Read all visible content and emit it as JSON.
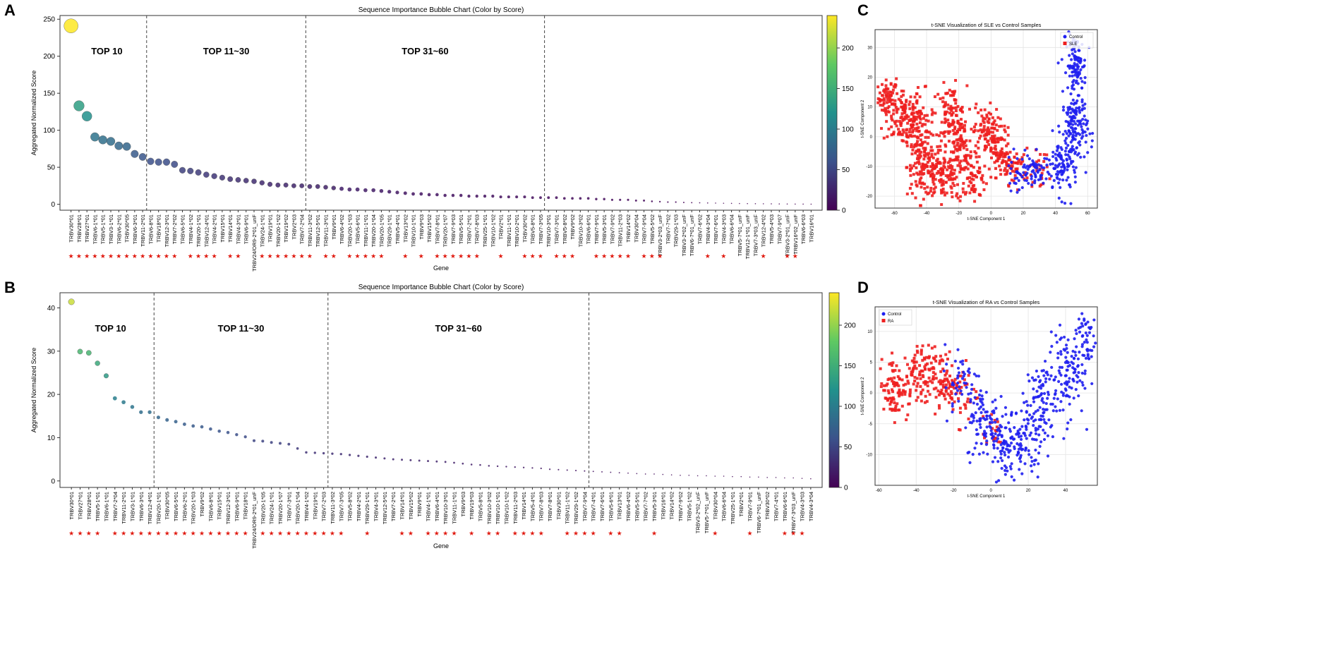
{
  "colors": {
    "panel_frame": "#333333",
    "viridis": [
      "#440154",
      "#3b528b",
      "#21918c",
      "#5ec962",
      "#fde725"
    ],
    "star": "#e0190f",
    "control": "#1f1ff0",
    "case": "#ee1f1f",
    "grid": "#e4e4e4"
  },
  "chart_data": [
    {
      "id": "A",
      "type": "scatter",
      "panel_label": "A",
      "title": "Sequence Importance Bubble Chart (Color by Score)",
      "xlabel": "Gene",
      "ylabel": "Aggregated Normalized Score",
      "yticks": [
        0,
        50,
        100,
        150,
        200,
        250
      ],
      "ylim": [
        -8,
        255
      ],
      "color_scale": [
        0,
        240
      ],
      "colorbar_ticks": [
        0,
        50,
        100,
        150,
        200
      ],
      "groups": [
        {
          "label": "TOP 10",
          "after": 9.5
        },
        {
          "label": "TOP 11~30",
          "after": 29.5
        },
        {
          "label": "TOP 31~60",
          "after": 59.5
        }
      ],
      "genes": [
        "TRBV30*01",
        "TRBV28*01",
        "TRBV27*01",
        "TRBV6-1*01",
        "TRBV5-1*01",
        "TRBV3-1*01",
        "TRBV6-2*01",
        "TRBV30*05",
        "TRBV6-3*01",
        "TRBV11-2*01",
        "TRBV6-8*01",
        "TRBV18*01",
        "TRBV12-3*01",
        "TRBV7-2*02",
        "TRBV6-5*01",
        "TRBV4-1*02",
        "TRBV20-1*01",
        "TRBV12-4*01",
        "TRBV4-2*01",
        "TRBV15*01",
        "TRBV14*01",
        "TRBV4-3*01",
        "TRBV6-9*01",
        "TRBV24/OR9-2*01_unF",
        "TRBV24-1*01",
        "TRBV19*01",
        "TRBV20-1*02",
        "TRBV19*02",
        "TRBV2*03",
        "TRBV7-2*04",
        "TRBV11-3*02",
        "TRBV12-5*01",
        "TRBV11-3*01",
        "TRBV9*01",
        "TRBV6-4*02",
        "TRBV20-1*03",
        "TRBV5-6*01",
        "TRBV11-1*01",
        "TRBV20-1*04",
        "TRBV20-1*05",
        "TRBV29-1*01",
        "TRBV5-4*01",
        "TRBV13*02",
        "TRBV10-1*01",
        "TRBV9*03",
        "TRBV15*02",
        "TRBV7-8*01",
        "TRBV20-1*07",
        "TRBV7-9*03",
        "TRBV5-5*01",
        "TRBV7-2*01",
        "TRBV7-8*03",
        "TRBV25-1*01",
        "TRBV10-1*02",
        "TRBV2*01",
        "TRBV11-1*01",
        "TRBV10-2*01",
        "TRBV30*02",
        "TRBV5-8*01",
        "TRBV7-3*05",
        "TRBV10-3*01",
        "TRBV7-3*01",
        "TRBV5-8*02",
        "TRBV9*02",
        "TRBV10-3*02",
        "TRBV6-6*01",
        "TRBV7-9*01",
        "TRBV5-3*01",
        "TRBV7-9*02",
        "TRBV11-2*03",
        "TRBV14*02",
        "TRBV30*04",
        "TRBV7-9*04",
        "TRBV5-5*02",
        "TRBV3-2*03_unF",
        "TRBV7-7*02",
        "TRBV29-1*03",
        "TRBV3-2*02_unF",
        "TRBV6-7*01_unF",
        "TRBV7-6*02",
        "TRBV4-3*04",
        "TRBV7-6*01",
        "TRBV4-3*03",
        "TRBV6-6*04",
        "TRBV5-7*01_unF",
        "TRBV12-1*01_unF",
        "TRBV7-3*03_unF",
        "TRBV12-4*02",
        "TRBV5-4*03",
        "TRBV7-9*07",
        "TRBV3-2*01_unF",
        "TRBV16*02_unF",
        "TRBV6-6*03",
        "TRBV16*01"
      ],
      "values": [
        241,
        133,
        119,
        91,
        87,
        85,
        79,
        78,
        68,
        64,
        58,
        57,
        57,
        54,
        46,
        45,
        43,
        40,
        38,
        36,
        34,
        33,
        32,
        31,
        29,
        27,
        26,
        26,
        25,
        25,
        24,
        24,
        23,
        22,
        21,
        20,
        20,
        19,
        19,
        18,
        17,
        16,
        15,
        14,
        14,
        13,
        13,
        12,
        12,
        12,
        11,
        11,
        11,
        11,
        10,
        10,
        10,
        10,
        9,
        9,
        9,
        9,
        8,
        8,
        8,
        8,
        7,
        7,
        6,
        6,
        6,
        5,
        5,
        4,
        3.5,
        3,
        3,
        2.5,
        2.2,
        2,
        1.8,
        1.6,
        1.4,
        1.2,
        1,
        0.9,
        0.8,
        0.7,
        0.6,
        0.5,
        0.4,
        0.3,
        0.25,
        0.2
      ],
      "stars": [
        1,
        1,
        1,
        1,
        1,
        1,
        1,
        1,
        1,
        1,
        1,
        1,
        1,
        1,
        0,
        1,
        1,
        1,
        1,
        0,
        1,
        1,
        0,
        0,
        1,
        1,
        1,
        1,
        1,
        1,
        1,
        0,
        1,
        1,
        0,
        1,
        1,
        1,
        1,
        1,
        0,
        0,
        1,
        0,
        1,
        0,
        1,
        1,
        1,
        1,
        1,
        1,
        0,
        0,
        1,
        0,
        0,
        1,
        1,
        1,
        0,
        1,
        1,
        1,
        0,
        0,
        1,
        1,
        1,
        1,
        1,
        0,
        1,
        1,
        1,
        0,
        0,
        0,
        0,
        0,
        1,
        0,
        1,
        0,
        0,
        0,
        0,
        1,
        0,
        0,
        1,
        1,
        0,
        0
      ]
    },
    {
      "id": "B",
      "type": "scatter",
      "panel_label": "B",
      "title": "Sequence Importance Bubble Chart (Color by Score)",
      "xlabel": "Gene",
      "ylabel": "Aggregated Normalized Score",
      "yticks": [
        0,
        10,
        20,
        30,
        40
      ],
      "ylim": [
        -1.5,
        43.5
      ],
      "color_scale": [
        0,
        45
      ],
      "colorbar_ticks": [
        0,
        50,
        100,
        150,
        200
      ],
      "colorbar_range": [
        0,
        240
      ],
      "groups": [
        {
          "label": "TOP 10",
          "after": 9.5
        },
        {
          "label": "TOP 11~30",
          "after": 29.5
        },
        {
          "label": "TOP 31~60",
          "after": 59.5
        }
      ],
      "genes": [
        "TRBV30*01",
        "TRBV27*01",
        "TRBV28*01",
        "TRBV5-1*01",
        "TRBV6-1*01",
        "TRBV7-2*04",
        "TRBV11-2*01",
        "TRBV3-1*01",
        "TRBV6-3*01",
        "TRBV12-4*01",
        "TRBV20-1*01",
        "TRBV30*05",
        "TRBV6-5*01",
        "TRBV6-2*01",
        "TRBV20-1*03",
        "TRBV9*02",
        "TRBV6-8*01",
        "TRBV15*01",
        "TRBV12-3*01",
        "TRBV6-9*01",
        "TRBV18*01",
        "TRBV24/OR9-2*01_unF",
        "TRBV20-1*05",
        "TRBV24-1*01",
        "TRBV20-1*07",
        "TRBV7-3*01",
        "TRBV20-1*04",
        "TRBV4-1*02",
        "TRBV19*01",
        "TRBV7-2*03",
        "TRBV11-3*02",
        "TRBV7-3*05",
        "TRBV5-8*02",
        "TRBV4-2*01",
        "TRBV29-1*01",
        "TRBV4-3*01",
        "TRBV12-5*01",
        "TRBV7-2*01",
        "TRBV14*01",
        "TRBV15*02",
        "TRBV9*01",
        "TRBV4-1*01",
        "TRBV6-4*01",
        "TRBV10-3*01",
        "TRBV11-1*01",
        "TRBV9*03",
        "TRBV19*03",
        "TRBV5-8*01",
        "TRBV10-3*02",
        "TRBV10-1*01",
        "TRBV10-1*02",
        "TRBV11-2*03",
        "TRBV14*01",
        "TRBV5-4*01",
        "TRBV7-8*03",
        "TRBV7-8*01",
        "TRBV30*01",
        "TRBV11-1*02",
        "TRBV29-1*02",
        "TRBV7-9*04",
        "TRBV7-4*01",
        "TRBV7-6*01",
        "TRBV5-6*01",
        "TRBV13*01",
        "TRBV6-4*02",
        "TRBV5-5*01",
        "TRBV7-7*02",
        "TRBV5-3*01",
        "TRBV16*01",
        "TRBV14*02",
        "TRBV7-9*02",
        "TRBV5-1*02",
        "TRBV3-2*02_unF",
        "TRBV5-7*01_unF",
        "TRBV30*04",
        "TRBV6-6*04",
        "TRBV25-1*01",
        "TRBV2*01",
        "TRBV7-9*01",
        "TRBV6-7*01_unF",
        "TRBV30*02",
        "TRBV7-4*01",
        "TRBV6-6*01",
        "TRBV7-3*03_unF",
        "TRBV4-3*03",
        "TRBV4-3*04"
      ],
      "values": [
        41.4,
        29.9,
        29.6,
        27.2,
        24.3,
        19.1,
        18.2,
        17.1,
        15.9,
        15.9,
        14.7,
        14.1,
        13.7,
        13.1,
        12.7,
        12.5,
        12.0,
        11.5,
        11.2,
        10.7,
        10.2,
        9.3,
        9.2,
        8.9,
        8.7,
        8.5,
        7.5,
        6.6,
        6.5,
        6.4,
        6.3,
        6.2,
        6.0,
        5.8,
        5.6,
        5.4,
        5.2,
        5.0,
        4.9,
        4.8,
        4.7,
        4.6,
        4.5,
        4.4,
        4.2,
        4.0,
        3.8,
        3.7,
        3.5,
        3.4,
        3.3,
        3.2,
        3.1,
        3.0,
        2.9,
        2.7,
        2.6,
        2.5,
        2.4,
        2.3,
        2.2,
        2.1,
        2.0,
        1.9,
        1.8,
        1.7,
        1.6,
        1.6,
        1.5,
        1.4,
        1.3,
        1.3,
        1.2,
        1.2,
        1.1,
        1.1,
        1.0,
        1.0,
        0.9,
        0.9,
        0.8,
        0.8,
        0.7,
        0.7,
        0.6,
        0.5
      ],
      "stars": [
        1,
        1,
        1,
        1,
        0,
        1,
        1,
        1,
        1,
        1,
        1,
        1,
        1,
        1,
        1,
        1,
        1,
        1,
        1,
        1,
        1,
        0,
        1,
        1,
        1,
        1,
        1,
        1,
        1,
        1,
        1,
        1,
        0,
        0,
        1,
        0,
        0,
        0,
        1,
        1,
        0,
        1,
        1,
        1,
        1,
        0,
        1,
        0,
        1,
        1,
        0,
        1,
        1,
        1,
        1,
        0,
        0,
        1,
        1,
        1,
        1,
        0,
        1,
        1,
        0,
        0,
        0,
        1,
        0,
        0,
        0,
        0,
        0,
        0,
        1,
        0,
        0,
        0,
        1,
        0,
        0,
        0,
        1,
        1,
        1,
        0
      ]
    },
    {
      "id": "C",
      "type": "scatter",
      "panel_label": "C",
      "title": "t-SNE Visualization of SLE vs Control Samples",
      "xlabel": "t-SNE Component 1",
      "ylabel": "t-SNE Component 2",
      "xlim": [
        -72,
        66
      ],
      "ylim": [
        -24,
        36
      ],
      "xticks": [
        -60,
        -40,
        -20,
        0,
        20,
        40,
        60
      ],
      "yticks": [
        -20,
        -10,
        0,
        10,
        20,
        30
      ],
      "legend": [
        "Control",
        "SLE"
      ],
      "legend_position": "top-right",
      "grid": true,
      "clusters": [
        {
          "series": "SLE",
          "cx": -64,
          "cy": 13,
          "sx": 3,
          "sy": 3,
          "n": 60
        },
        {
          "series": "SLE",
          "cx": -55,
          "cy": 7,
          "sx": 6,
          "sy": 5,
          "n": 120
        },
        {
          "series": "SLE",
          "cx": -45,
          "cy": 3,
          "sx": 5,
          "sy": 6,
          "n": 100
        },
        {
          "series": "SLE",
          "cx": -42,
          "cy": -10,
          "sx": 5,
          "sy": 5,
          "n": 100
        },
        {
          "series": "SLE",
          "cx": -30,
          "cy": -13,
          "sx": 6,
          "sy": 4,
          "n": 110
        },
        {
          "series": "SLE",
          "cx": -25,
          "cy": 7,
          "sx": 5,
          "sy": 5,
          "n": 100
        },
        {
          "series": "SLE",
          "cx": -18,
          "cy": -3,
          "sx": 5,
          "sy": 6,
          "n": 80
        },
        {
          "series": "SLE",
          "cx": -12,
          "cy": -14,
          "sx": 5,
          "sy": 4,
          "n": 70
        },
        {
          "series": "SLE",
          "cx": -3,
          "cy": 2,
          "sx": 4,
          "sy": 4,
          "n": 80
        },
        {
          "series": "SLE",
          "cx": 5,
          "cy": -5,
          "sx": 4,
          "sy": 4,
          "n": 70
        },
        {
          "series": "SLE",
          "cx": 14,
          "cy": -10,
          "sx": 5,
          "sy": 3,
          "n": 60
        },
        {
          "series": "SLE",
          "cx": 30,
          "cy": -11,
          "sx": 3,
          "sy": 3,
          "n": 25
        },
        {
          "series": "Control",
          "cx": 53,
          "cy": 24,
          "sx": 3,
          "sy": 5,
          "n": 110
        },
        {
          "series": "Control",
          "cx": 52,
          "cy": 3,
          "sx": 4,
          "sy": 6,
          "n": 140
        },
        {
          "series": "Control",
          "cx": 44,
          "cy": -10,
          "sx": 5,
          "sy": 5,
          "n": 100
        },
        {
          "series": "Control",
          "cx": 27,
          "cy": -12,
          "sx": 4,
          "sy": 3,
          "n": 50
        },
        {
          "series": "Control",
          "cx": 16,
          "cy": -12,
          "sx": 4,
          "sy": 3,
          "n": 30
        }
      ]
    },
    {
      "id": "D",
      "type": "scatter",
      "panel_label": "D",
      "title": "t-SNE Visualization of RA vs Control Samples",
      "xlabel": "t-SNE Component 1",
      "ylabel": "t-SNE Component 2",
      "xlim": [
        -62,
        57
      ],
      "ylim": [
        -15,
        14
      ],
      "xticks": [
        -60,
        -40,
        -20,
        0,
        20,
        40
      ],
      "yticks": [
        -10,
        -5,
        0,
        5,
        10
      ],
      "legend": [
        "Control",
        "RA"
      ],
      "legend_position": "top-left",
      "grid": true,
      "clusters": [
        {
          "series": "RA",
          "cx": -52,
          "cy": 1,
          "sx": 4,
          "sy": 2.5,
          "n": 80
        },
        {
          "series": "RA",
          "cx": -40,
          "cy": 2.5,
          "sx": 5,
          "sy": 2.5,
          "n": 90
        },
        {
          "series": "RA",
          "cx": -27,
          "cy": 2,
          "sx": 5,
          "sy": 2.5,
          "n": 80
        },
        {
          "series": "RA",
          "cx": -15,
          "cy": 0,
          "sx": 4,
          "sy": 2.5,
          "n": 40
        },
        {
          "series": "RA",
          "cx": 0,
          "cy": -6,
          "sx": 4,
          "sy": 2,
          "n": 20
        },
        {
          "series": "Control",
          "cx": -15,
          "cy": 2,
          "sx": 5,
          "sy": 3,
          "n": 50
        },
        {
          "series": "Control",
          "cx": -3,
          "cy": -5,
          "sx": 5,
          "sy": 3,
          "n": 80
        },
        {
          "series": "Control",
          "cx": 8,
          "cy": -8,
          "sx": 5,
          "sy": 3,
          "n": 90
        },
        {
          "series": "Control",
          "cx": 20,
          "cy": -7,
          "sx": 5,
          "sy": 3,
          "n": 80
        },
        {
          "series": "Control",
          "cx": 27,
          "cy": -1,
          "sx": 4,
          "sy": 3,
          "n": 70
        },
        {
          "series": "Control",
          "cx": 40,
          "cy": 3,
          "sx": 5,
          "sy": 3.5,
          "n": 110
        },
        {
          "series": "Control",
          "cx": 50,
          "cy": 9,
          "sx": 3,
          "sy": 2.5,
          "n": 50
        }
      ]
    }
  ]
}
